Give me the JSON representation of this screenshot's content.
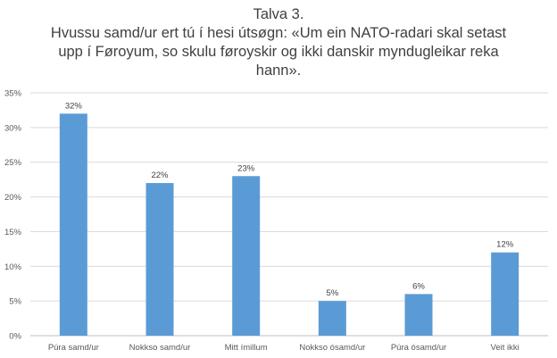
{
  "chart_data": {
    "type": "bar",
    "title_lines": [
      "Talva 3.",
      "Hvussu samd/ur ert tú í hesi útsøgn: «Um ein NATO-radari skal setast",
      "upp í Føroyum, so skulu føroyskir og ikki danskir myndugleikar reka",
      "hann»."
    ],
    "categories": [
      "Púra samd/ur",
      "Nokkso samd/ur",
      "Mitt ímillum",
      "Nokkso ósamd/ur",
      "Púra ósamd/ur",
      "Veit ikki"
    ],
    "values": [
      32,
      22,
      23,
      5,
      6,
      12
    ],
    "data_labels": [
      "32%",
      "22%",
      "23%",
      "5%",
      "6%",
      "12%"
    ],
    "value_unit": "%",
    "ylim": [
      0,
      35
    ],
    "yticks": [
      0,
      5,
      10,
      15,
      20,
      25,
      30,
      35
    ],
    "ytick_labels": [
      "0%",
      "5%",
      "10%",
      "15%",
      "20%",
      "25%",
      "30%",
      "35%"
    ],
    "xlabel": "",
    "ylabel": "",
    "grid": true,
    "bar_color": "#5B9BD5",
    "grid_color": "#D9D9D9"
  }
}
